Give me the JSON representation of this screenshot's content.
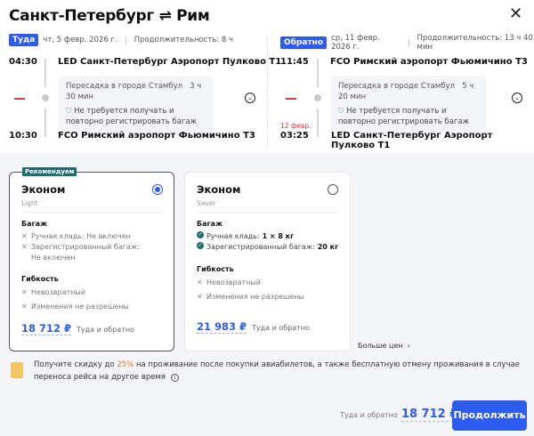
{
  "header": {
    "title": "Санкт-Петербург ⇌ Рим",
    "close_icon": "close-icon"
  },
  "outbound": {
    "badge": "Туда",
    "date": "чт, 5 февр. 2026 г.",
    "duration": "Продолжительность: 8 ч",
    "dep_time": "04:30",
    "dep_airport": "LED Санкт-Петербург Аэропорт Пулково Т1",
    "layover": "Пересадка в городе Стамбул",
    "layover_time": "3 ч 30 мин",
    "baggage_note": "Не требуется получать и повторно регистрировать багаж",
    "arr_time": "10:30",
    "arr_airport": "FCO Римский аэропорт Фьюмичино Т3"
  },
  "return": {
    "badge": "Обратно",
    "date": "ср, 11 февр. 2026 г.",
    "duration": "Продолжительность: 13 ч 40 мин",
    "dep_time": "11:45",
    "dep_airport": "FCO Римский аэропорт Фьюмичино Т3",
    "layover": "Пересадка в городе Стамбул",
    "layover_time": "5 ч 20 мин",
    "baggage_note": "Не требуется получать и повторно регистрировать багаж",
    "arr_date": "12 февр.",
    "arr_time": "03:25",
    "arr_airport": "LED Санкт-Петербург Аэропорт Пулково Т1"
  },
  "fares": [
    {
      "tag": "Рекомендуем",
      "name": "Эконом",
      "sub": "Light",
      "selected": true,
      "baggage_title": "Багаж",
      "baggage": [
        "Ручная кладь: Не включен",
        "Зарегистрированный багаж: Не включен"
      ],
      "flex_title": "Гибкость",
      "flex": [
        "Невозвратный",
        "Изменения не разрешены"
      ],
      "price": "18 712 ₽",
      "price_note": "Туда и обратно"
    },
    {
      "name": "Эконом",
      "sub": "Saver",
      "selected": false,
      "baggage_title": "Багаж",
      "baggage": [
        {
          "label": "Ручная кладь: ",
          "value": "1 × 8 кг"
        },
        {
          "label": "Зарегистрированный багаж: ",
          "value": "20 кг"
        }
      ],
      "flex_title": "Гибкость",
      "flex": [
        "Невозвратный",
        "Изменения не разрешены"
      ],
      "price": "21 983 ₽",
      "price_note": "Туда и обратно"
    }
  ],
  "more_prices": "Больше цен",
  "promo": {
    "pre": "Получите скидку до ",
    "highlight": "25%",
    "post": " на проживание после покупки авиабилетов, а также бесплатную отмену проживания в случае переноса рейса на другое время"
  },
  "footer": {
    "label": "Туда и обратно",
    "price": "18 712 ₽",
    "continue": "Продолжить"
  },
  "colors": {
    "accent": "#2d5bf0",
    "recommend": "#1f6b70",
    "promo_highlight": "#e07a2e",
    "date_change": "#e0383e"
  }
}
